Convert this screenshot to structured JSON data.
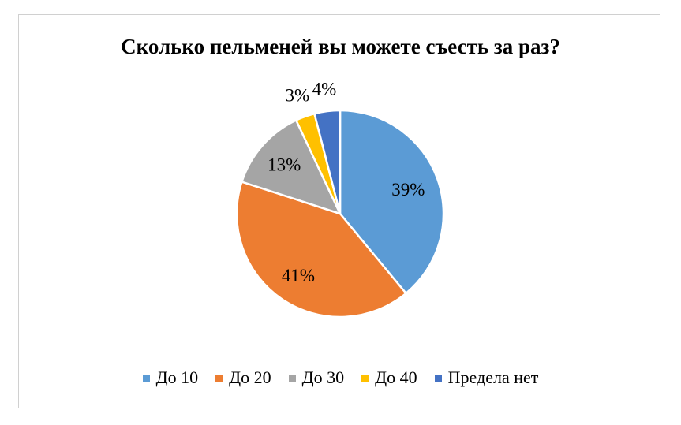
{
  "chart_data": {
    "type": "pie",
    "title": "Сколько пельменей вы можете съесть за раз?",
    "categories": [
      "До 10",
      "До 20",
      "До 30",
      "До 40",
      "Предела нет"
    ],
    "values": [
      39,
      41,
      13,
      3,
      4
    ],
    "data_labels": [
      "39%",
      "41%",
      "13%",
      "3%",
      "4%"
    ],
    "colors": [
      "#5b9bd5",
      "#ed7d31",
      "#a5a5a5",
      "#ffc000",
      "#4472c4"
    ],
    "legend_position": "bottom"
  }
}
